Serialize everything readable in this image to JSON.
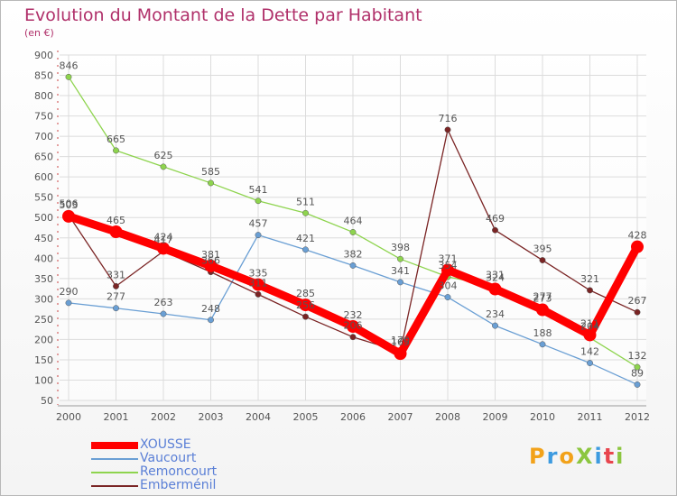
{
  "header": {
    "title": "Evolution du Montant de la Dette par Habitant",
    "subtitle": "(en €)"
  },
  "logo": {
    "text": "Proxiti",
    "letters": [
      {
        "ch": "P",
        "color": "#f2a21a"
      },
      {
        "ch": "r",
        "color": "#3d9be0"
      },
      {
        "ch": "o",
        "color": "#f2a21a"
      },
      {
        "ch": "X",
        "color": "#8cc63f"
      },
      {
        "ch": "i",
        "color": "#3d9be0"
      },
      {
        "ch": "t",
        "color": "#e8454e"
      },
      {
        "ch": "i",
        "color": "#8cc63f"
      }
    ]
  },
  "chart_data": {
    "type": "line",
    "title": "Evolution du Montant de la Dette par Habitant",
    "subtitle": "(en €)",
    "x": [
      "2000",
      "2001",
      "2002",
      "2003",
      "2004",
      "2005",
      "2006",
      "2007",
      "2008",
      "2009",
      "2010",
      "2011",
      "2012"
    ],
    "ylim": [
      50,
      900
    ],
    "yticks": [
      50,
      100,
      150,
      200,
      250,
      300,
      350,
      400,
      450,
      500,
      550,
      600,
      650,
      700,
      750,
      800,
      850,
      900
    ],
    "grid": true,
    "legend_position": "bottom-left",
    "series": [
      {
        "name": "XOUSSE",
        "color": "#ff0000",
        "values": [
          503,
          465,
          424,
          381,
          335,
          285,
          232,
          165,
          371,
          324,
          273,
          211,
          428
        ]
      },
      {
        "name": "Vaucourt",
        "color": "#6a9fd4",
        "values": [
          290,
          277,
          263,
          248,
          457,
          421,
          382,
          341,
          304,
          234,
          188,
          142,
          89
        ]
      },
      {
        "name": "Remoncourt",
        "color": "#8ed44e",
        "values": [
          846,
          665,
          625,
          585,
          541,
          511,
          464,
          398,
          354,
          331,
          277,
          204,
          132
        ]
      },
      {
        "name": "Emberménil",
        "color": "#7a2424",
        "values": [
          506,
          331,
          417,
          366,
          311,
          256,
          206,
          170,
          716,
          469,
          395,
          321,
          267
        ]
      }
    ]
  }
}
